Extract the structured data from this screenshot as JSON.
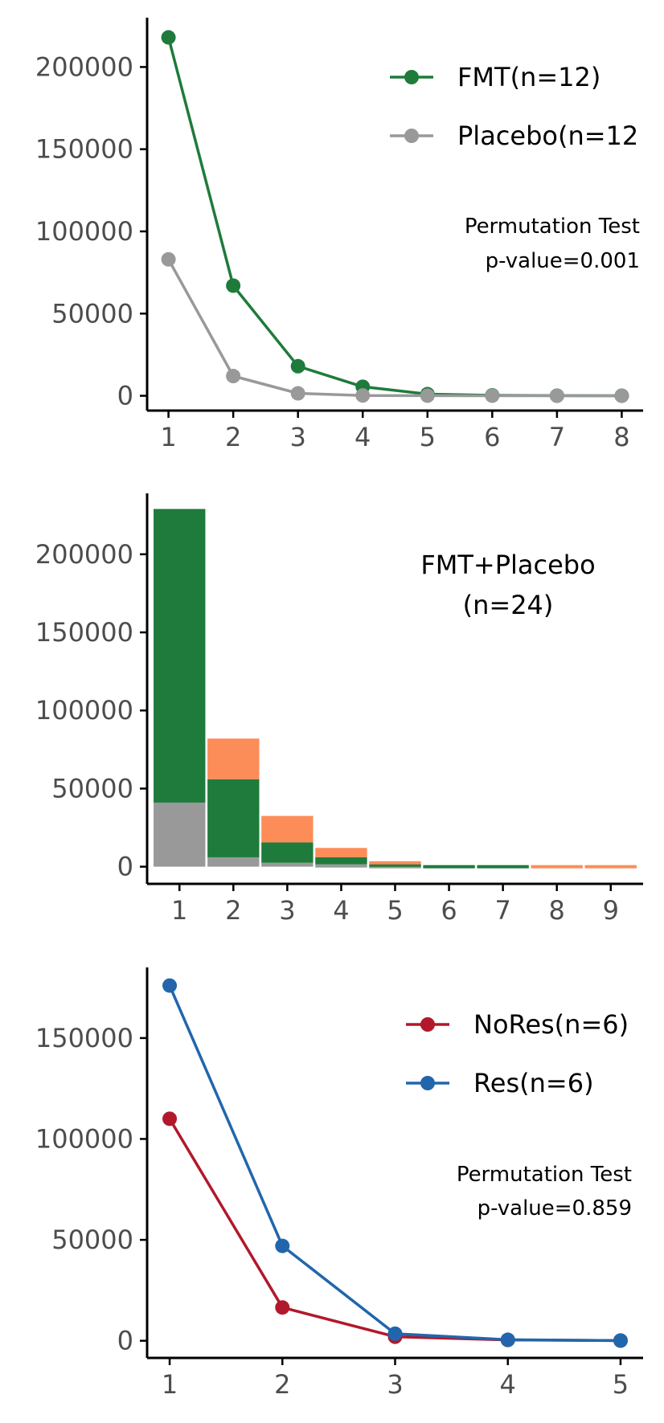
{
  "chart_data": [
    {
      "type": "line",
      "x": [
        1,
        2,
        3,
        4,
        5,
        6,
        7,
        8
      ],
      "series": [
        {
          "name": "FMT(n=12)",
          "color": "#1e7b3b",
          "values": [
            218000,
            67000,
            18000,
            5500,
            1000,
            300,
            100,
            50
          ]
        },
        {
          "name": "Placebo(n=12",
          "color": "#999999",
          "values": [
            83000,
            12000,
            1500,
            200,
            100,
            50,
            20,
            10
          ]
        }
      ],
      "ylim": [
        -9000,
        230000
      ],
      "yticks": [
        0,
        50000,
        100000,
        150000,
        200000
      ],
      "ytick_labels": [
        "0",
        "50000",
        "100000",
        "150000",
        "200000"
      ],
      "xtick_labels": [
        "1",
        "2",
        "3",
        "4",
        "5",
        "6",
        "7",
        "8"
      ],
      "xlim": [
        0.67,
        8.33
      ],
      "legend": "top-right",
      "annotation": [
        "Permutation Test",
        "p-value=0.001"
      ],
      "grid": false
    },
    {
      "type": "bar",
      "stacked": true,
      "categories": [
        "1",
        "2",
        "3",
        "4",
        "5",
        "6",
        "7",
        "8",
        "9"
      ],
      "series": [
        {
          "color": "#999999",
          "values": [
            41000,
            6000,
            2500,
            1500,
            1000,
            0,
            0,
            0,
            0
          ]
        },
        {
          "color": "#1e7b3b",
          "values": [
            188000,
            50000,
            13000,
            4500,
            1000,
            1000,
            1000,
            0,
            0
          ]
        },
        {
          "color": "#fc8d59",
          "values": [
            0,
            26000,
            17000,
            6000,
            1500,
            0,
            0,
            1000,
            1000
          ]
        }
      ],
      "ylim": [
        -11000,
        239000
      ],
      "yticks": [
        0,
        50000,
        100000,
        150000,
        200000
      ],
      "ytick_labels": [
        "0",
        "50000",
        "100000",
        "150000",
        "200000"
      ],
      "annotation": [
        "FMT+Placebo",
        "(n=24)"
      ],
      "grid": false
    },
    {
      "type": "line",
      "x": [
        1,
        2,
        3,
        4,
        5
      ],
      "series": [
        {
          "name": "NoRes(n=6)",
          "color": "#b2182b",
          "values": [
            110000,
            16500,
            2000,
            400,
            100
          ]
        },
        {
          "name": "Res(n=6)",
          "color": "#2166ac",
          "values": [
            176000,
            47000,
            3500,
            500,
            100
          ]
        }
      ],
      "ylim": [
        -8500,
        185000
      ],
      "yticks": [
        0,
        50000,
        100000,
        150000
      ],
      "ytick_labels": [
        "0",
        "50000",
        "100000",
        "150000"
      ],
      "xtick_labels": [
        "1",
        "2",
        "3",
        "4",
        "5"
      ],
      "xlim": [
        0.8,
        5.2
      ],
      "legend": "top-right",
      "annotation": [
        "Permutation Test",
        "p-value=0.859"
      ],
      "grid": false
    }
  ]
}
